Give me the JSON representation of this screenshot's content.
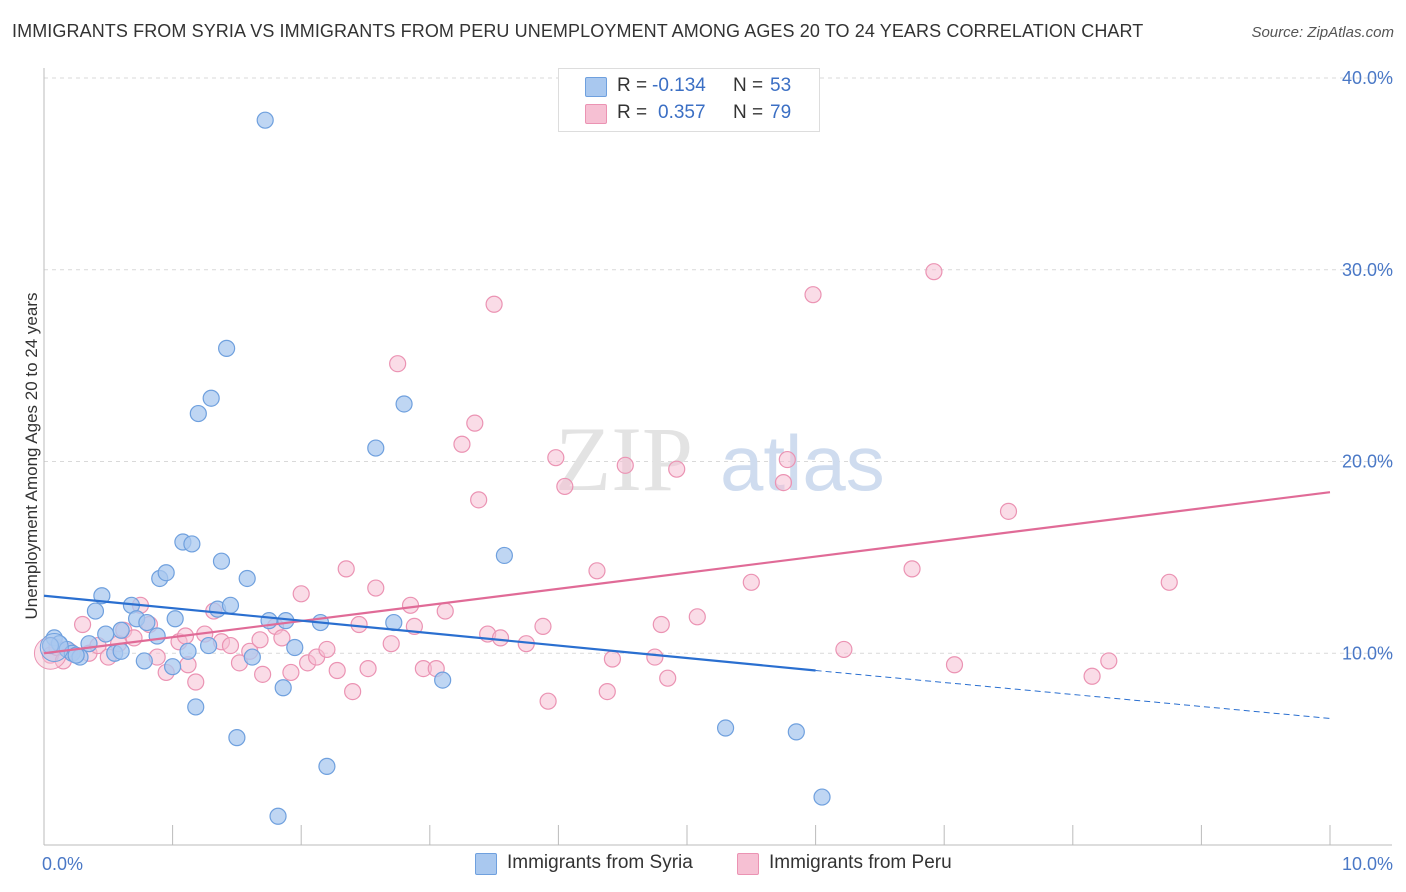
{
  "header": {
    "title": "IMMIGRANTS FROM SYRIA VS IMMIGRANTS FROM PERU UNEMPLOYMENT AMONG AGES 20 TO 24 YEARS CORRELATION CHART",
    "source": "Source: ZipAtlas.com"
  },
  "watermark": {
    "zip": "ZIP",
    "atlas": "atlas"
  },
  "legend": {
    "r_label": "R =",
    "n_label": "N =",
    "syria": {
      "r": "-0.134",
      "n": "53"
    },
    "peru": {
      "r": "0.357",
      "n": "79"
    }
  },
  "colors": {
    "syria_fill": "#a9c8ef",
    "syria_stroke": "#6fa0de",
    "syria_line": "#2a6fd0",
    "peru_fill": "#f6c0d3",
    "peru_stroke": "#eb93b3",
    "peru_line": "#e06b97",
    "tick_text": "#4a78c6",
    "grid": "#d9d9d9"
  },
  "chart_data": {
    "type": "scatter",
    "title": "IMMIGRANTS FROM SYRIA VS IMMIGRANTS FROM PERU UNEMPLOYMENT AMONG AGES 20 TO 24 YEARS CORRELATION CHART",
    "xlabel": "",
    "ylabel": "Unemployment Among Ages 20 to 24 years",
    "xlim": [
      0,
      10
    ],
    "ylim": [
      0,
      40
    ],
    "x_ticks": [
      {
        "value": 0,
        "label": "0.0%"
      },
      {
        "value": 10,
        "label": "10.0%"
      }
    ],
    "y_ticks": [
      {
        "value": 10,
        "label": "10.0%"
      },
      {
        "value": 20,
        "label": "20.0%"
      },
      {
        "value": 30,
        "label": "30.0%"
      },
      {
        "value": 40,
        "label": "40.0%"
      }
    ],
    "grid": "horizontal dashed",
    "legend_position": "top-center and bottom",
    "series": [
      {
        "name": "Immigrants from Syria",
        "trend": {
          "x0": 0,
          "y0": 13.0,
          "x1": 6.0,
          "y1": 9.1,
          "dashed_to_x": 10,
          "dashed_to_y": 6.6
        },
        "points": [
          [
            0.08,
            10.8
          ],
          [
            0.12,
            10.5
          ],
          [
            0.18,
            10.2
          ],
          [
            0.22,
            10.0
          ],
          [
            0.28,
            9.8
          ],
          [
            0.35,
            10.5
          ],
          [
            0.4,
            12.2
          ],
          [
            0.45,
            13.0
          ],
          [
            0.48,
            11.0
          ],
          [
            0.55,
            10.0
          ],
          [
            0.6,
            11.2
          ],
          [
            0.68,
            12.5
          ],
          [
            0.72,
            11.8
          ],
          [
            0.78,
            9.6
          ],
          [
            0.8,
            11.6
          ],
          [
            0.88,
            10.9
          ],
          [
            0.9,
            13.9
          ],
          [
            0.95,
            14.2
          ],
          [
            1.0,
            9.3
          ],
          [
            1.02,
            11.8
          ],
          [
            1.08,
            15.8
          ],
          [
            1.12,
            10.1
          ],
          [
            1.15,
            15.7
          ],
          [
            1.18,
            7.2
          ],
          [
            1.2,
            22.5
          ],
          [
            1.28,
            10.4
          ],
          [
            1.3,
            23.3
          ],
          [
            1.35,
            12.3
          ],
          [
            1.38,
            14.8
          ],
          [
            1.42,
            25.9
          ],
          [
            1.45,
            12.5
          ],
          [
            1.5,
            5.6
          ],
          [
            1.58,
            13.9
          ],
          [
            1.62,
            9.8
          ],
          [
            1.72,
            37.8
          ],
          [
            1.75,
            11.7
          ],
          [
            1.82,
            1.5
          ],
          [
            1.86,
            8.2
          ],
          [
            1.88,
            11.7
          ],
          [
            1.95,
            10.3
          ],
          [
            2.15,
            11.6
          ],
          [
            2.2,
            4.1
          ],
          [
            2.58,
            20.7
          ],
          [
            2.72,
            11.6
          ],
          [
            2.8,
            23.0
          ],
          [
            3.1,
            8.6
          ],
          [
            3.58,
            15.1
          ],
          [
            5.3,
            6.1
          ],
          [
            5.85,
            5.9
          ],
          [
            6.05,
            2.5
          ],
          [
            0.05,
            10.4
          ],
          [
            0.25,
            9.9
          ],
          [
            0.6,
            10.1
          ]
        ]
      },
      {
        "name": "Immigrants from Peru",
        "trend": {
          "x0": 0,
          "y0": 10.0,
          "x1": 10,
          "y1": 18.4
        },
        "points": [
          [
            0.05,
            9.9
          ],
          [
            0.1,
            10.3
          ],
          [
            0.15,
            9.6
          ],
          [
            0.2,
            10.1
          ],
          [
            0.3,
            11.5
          ],
          [
            0.35,
            10.0
          ],
          [
            0.42,
            10.4
          ],
          [
            0.5,
            9.8
          ],
          [
            0.58,
            10.5
          ],
          [
            0.62,
            11.2
          ],
          [
            0.7,
            10.8
          ],
          [
            0.75,
            12.5
          ],
          [
            0.82,
            11.5
          ],
          [
            0.88,
            9.8
          ],
          [
            0.95,
            9.0
          ],
          [
            1.05,
            10.6
          ],
          [
            1.1,
            10.9
          ],
          [
            1.12,
            9.4
          ],
          [
            1.18,
            8.5
          ],
          [
            1.25,
            11.0
          ],
          [
            1.32,
            12.2
          ],
          [
            1.38,
            10.6
          ],
          [
            1.45,
            10.4
          ],
          [
            1.52,
            9.5
          ],
          [
            1.6,
            10.1
          ],
          [
            1.68,
            10.7
          ],
          [
            1.7,
            8.9
          ],
          [
            1.8,
            11.4
          ],
          [
            1.85,
            10.8
          ],
          [
            1.92,
            9.0
          ],
          [
            2.0,
            13.1
          ],
          [
            2.05,
            9.5
          ],
          [
            2.12,
            9.8
          ],
          [
            2.2,
            10.2
          ],
          [
            2.28,
            9.1
          ],
          [
            2.35,
            14.4
          ],
          [
            2.4,
            8.0
          ],
          [
            2.45,
            11.5
          ],
          [
            2.52,
            9.2
          ],
          [
            2.58,
            13.4
          ],
          [
            2.7,
            10.5
          ],
          [
            2.75,
            25.1
          ],
          [
            2.85,
            12.5
          ],
          [
            2.88,
            11.4
          ],
          [
            2.95,
            9.2
          ],
          [
            3.05,
            9.2
          ],
          [
            3.12,
            12.2
          ],
          [
            3.25,
            20.9
          ],
          [
            3.35,
            22.0
          ],
          [
            3.38,
            18.0
          ],
          [
            3.45,
            11.0
          ],
          [
            3.5,
            28.2
          ],
          [
            3.55,
            10.8
          ],
          [
            3.75,
            10.5
          ],
          [
            3.88,
            11.4
          ],
          [
            3.92,
            7.5
          ],
          [
            3.98,
            20.2
          ],
          [
            4.05,
            18.7
          ],
          [
            4.3,
            14.3
          ],
          [
            4.38,
            8.0
          ],
          [
            4.42,
            9.7
          ],
          [
            4.52,
            19.8
          ],
          [
            4.75,
            9.8
          ],
          [
            4.8,
            11.5
          ],
          [
            4.85,
            8.7
          ],
          [
            4.92,
            19.6
          ],
          [
            5.08,
            11.9
          ],
          [
            5.5,
            13.7
          ],
          [
            5.75,
            18.9
          ],
          [
            5.78,
            20.1
          ],
          [
            5.98,
            28.7
          ],
          [
            6.22,
            10.2
          ],
          [
            6.75,
            14.4
          ],
          [
            6.92,
            29.9
          ],
          [
            7.08,
            9.4
          ],
          [
            7.5,
            17.4
          ],
          [
            8.15,
            8.8
          ],
          [
            8.28,
            9.6
          ],
          [
            8.75,
            13.7
          ]
        ]
      }
    ]
  },
  "bottom_legend": {
    "syria_label": "Immigrants from Syria",
    "peru_label": "Immigrants from Peru"
  }
}
